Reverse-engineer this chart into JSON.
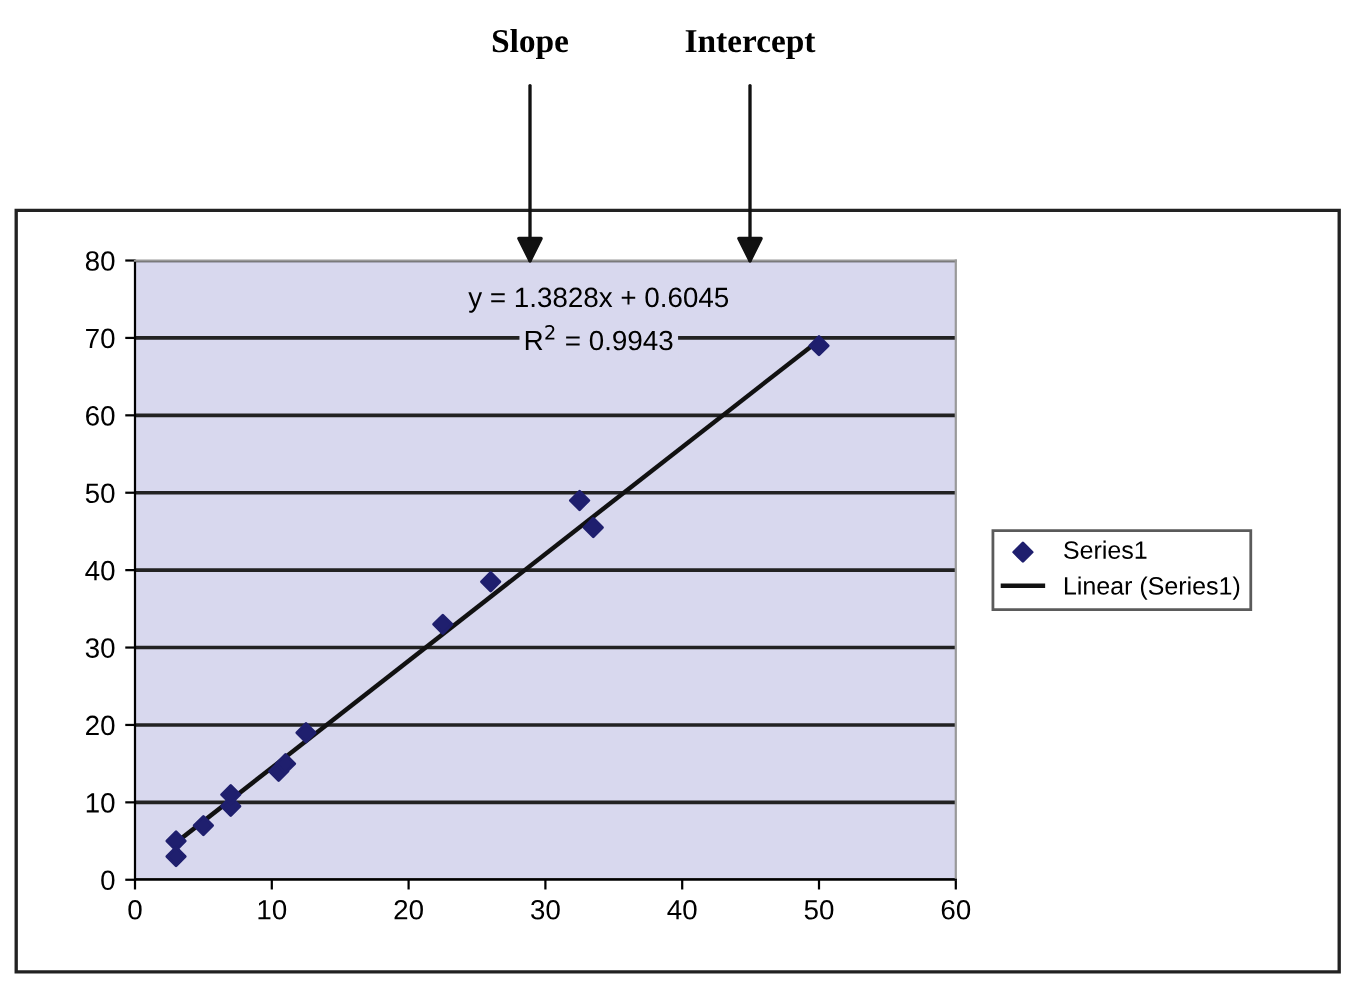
{
  "chart_data": {
    "type": "scatter",
    "xlim": [
      0,
      60
    ],
    "xticks": [
      0,
      10,
      20,
      30,
      40,
      50,
      60
    ],
    "ylim": [
      0,
      80
    ],
    "yticks": [
      0,
      10,
      20,
      30,
      40,
      50,
      60,
      70,
      80
    ],
    "grid": "y",
    "legend": "right",
    "series": [
      {
        "name": "Series1",
        "marker": "diamond",
        "color": "#1f1f6e",
        "x": [
          3,
          3,
          5,
          7,
          7,
          10.5,
          11,
          12.5,
          22.5,
          26,
          32.5,
          33.5,
          50
        ],
        "values": [
          5,
          3,
          7,
          9.5,
          11,
          14,
          15,
          19,
          33,
          38.5,
          49,
          45.5,
          69
        ]
      },
      {
        "name": "Linear (Series1)",
        "type": "line",
        "color": "#111111",
        "x": [
          3,
          50
        ],
        "values": [
          4.8,
          69.7
        ]
      }
    ],
    "annotations": [
      "Slope",
      "Intercept",
      "y = 1.3828x + 0.6045",
      "R$^{2}$ = 0.9943"
    ]
  }
}
